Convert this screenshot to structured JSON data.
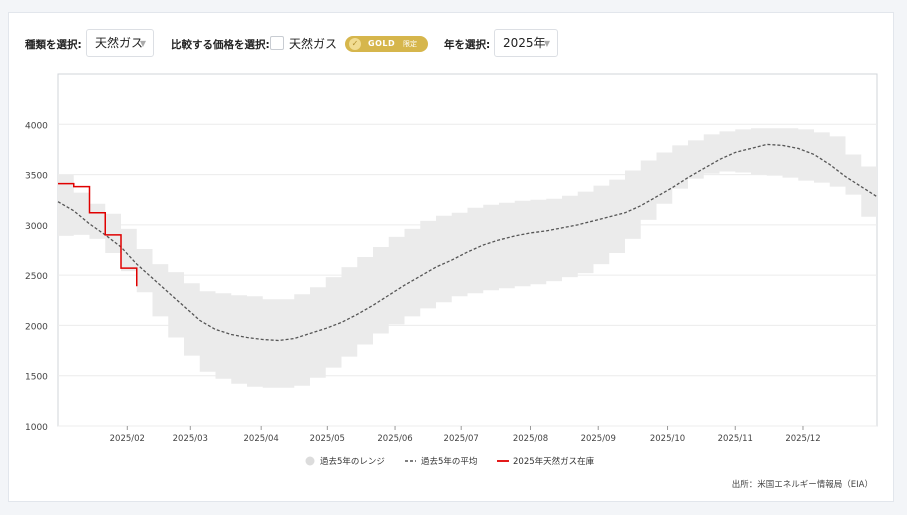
{
  "controls": {
    "type_label": "種類を選択:",
    "type_value": "天然ガス",
    "compare_label": "比較する価格を選択:",
    "compare_value": "天然ガス",
    "gold_badge": "GOLD",
    "gold_sub": "限定",
    "year_label": "年を選択:",
    "year_value": "2025年",
    "arrow": "▼"
  },
  "colors": {
    "range_fill": "#ebebeb",
    "avg_line": "#555555",
    "current_line": "#e00000",
    "gold": "#d6b64c"
  },
  "source": "出所：米国エネルギー情報局（EIA）",
  "chart_data": {
    "type": "area",
    "ylim": [
      1000,
      4500
    ],
    "yticks": [
      1000,
      1500,
      2000,
      2500,
      3000,
      3500,
      4000
    ],
    "xlim": [
      0,
      52
    ],
    "xticks": [
      {
        "label": "2025/02",
        "week": 4.4
      },
      {
        "label": "2025/03",
        "week": 8.4
      },
      {
        "label": "2025/04",
        "week": 12.9
      },
      {
        "label": "2025/05",
        "week": 17.1
      },
      {
        "label": "2025/06",
        "week": 21.4
      },
      {
        "label": "2025/07",
        "week": 25.6
      },
      {
        "label": "2025/08",
        "week": 30.0
      },
      {
        "label": "2025/09",
        "week": 34.3
      },
      {
        "label": "2025/10",
        "week": 38.7
      },
      {
        "label": "2025/11",
        "week": 43.0
      },
      {
        "label": "2025/12",
        "week": 47.3
      }
    ],
    "grid": true,
    "legend_position": "bottom",
    "legend": [
      "過去5年のレンジ",
      "過去5年の平均",
      "2025年天然ガス在庫"
    ],
    "series": [
      {
        "name": "過去5年の平均",
        "x": [
          0,
          1,
          2,
          3,
          4,
          5,
          6,
          7,
          8,
          9,
          10,
          11,
          12,
          13,
          14,
          15,
          16,
          17,
          18,
          19,
          20,
          21,
          22,
          23,
          24,
          25,
          26,
          27,
          28,
          29,
          30,
          31,
          32,
          33,
          34,
          35,
          36,
          37,
          38,
          39,
          40,
          41,
          42,
          43,
          44,
          45,
          46,
          47,
          48,
          49,
          50,
          51,
          52
        ],
        "values": [
          3230,
          3140,
          3010,
          2900,
          2780,
          2610,
          2470,
          2330,
          2190,
          2050,
          1960,
          1910,
          1880,
          1860,
          1850,
          1870,
          1920,
          1970,
          2030,
          2110,
          2200,
          2300,
          2400,
          2490,
          2580,
          2650,
          2730,
          2800,
          2850,
          2890,
          2920,
          2940,
          2970,
          3000,
          3040,
          3080,
          3120,
          3190,
          3280,
          3370,
          3470,
          3560,
          3650,
          3720,
          3760,
          3800,
          3790,
          3760,
          3700,
          3600,
          3480,
          3380,
          3280
        ]
      },
      {
        "name": "過去5年のレンジ（上限）",
        "x": [
          0,
          1,
          2,
          3,
          4,
          5,
          6,
          7,
          8,
          9,
          10,
          11,
          12,
          13,
          14,
          15,
          16,
          17,
          18,
          19,
          20,
          21,
          22,
          23,
          24,
          25,
          26,
          27,
          28,
          29,
          30,
          31,
          32,
          33,
          34,
          35,
          36,
          37,
          38,
          39,
          40,
          41,
          42,
          43,
          44,
          45,
          46,
          47,
          48,
          49,
          50,
          51,
          52
        ],
        "values": [
          3500,
          3320,
          3210,
          3110,
          2960,
          2760,
          2610,
          2530,
          2420,
          2340,
          2320,
          2300,
          2290,
          2260,
          2260,
          2310,
          2380,
          2480,
          2580,
          2680,
          2780,
          2880,
          2960,
          3040,
          3090,
          3120,
          3170,
          3200,
          3220,
          3240,
          3250,
          3260,
          3290,
          3330,
          3390,
          3450,
          3540,
          3640,
          3720,
          3790,
          3840,
          3900,
          3930,
          3950,
          3960,
          3960,
          3960,
          3950,
          3920,
          3880,
          3700,
          3580,
          3480
        ]
      },
      {
        "name": "過去5年のレンジ（下限）",
        "x": [
          0,
          1,
          2,
          3,
          4,
          5,
          6,
          7,
          8,
          9,
          10,
          11,
          12,
          13,
          14,
          15,
          16,
          17,
          18,
          19,
          20,
          21,
          22,
          23,
          24,
          25,
          26,
          27,
          28,
          29,
          30,
          31,
          32,
          33,
          34,
          35,
          36,
          37,
          38,
          39,
          40,
          41,
          42,
          43,
          44,
          45,
          46,
          47,
          48,
          49,
          50,
          51,
          52
        ],
        "values": [
          2890,
          2900,
          2860,
          2720,
          2540,
          2330,
          2090,
          1880,
          1700,
          1540,
          1470,
          1420,
          1390,
          1380,
          1380,
          1400,
          1480,
          1580,
          1690,
          1810,
          1920,
          2010,
          2090,
          2170,
          2230,
          2290,
          2320,
          2350,
          2370,
          2390,
          2410,
          2440,
          2480,
          2520,
          2610,
          2720,
          2860,
          3050,
          3210,
          3360,
          3460,
          3510,
          3530,
          3520,
          3500,
          3490,
          3470,
          3440,
          3420,
          3380,
          3300,
          3080,
          2880
        ]
      },
      {
        "name": "2025年天然ガス在庫",
        "x": [
          0,
          1,
          2,
          3,
          4,
          5
        ],
        "values": [
          3410,
          3380,
          3120,
          2900,
          2570,
          2390
        ]
      }
    ]
  }
}
